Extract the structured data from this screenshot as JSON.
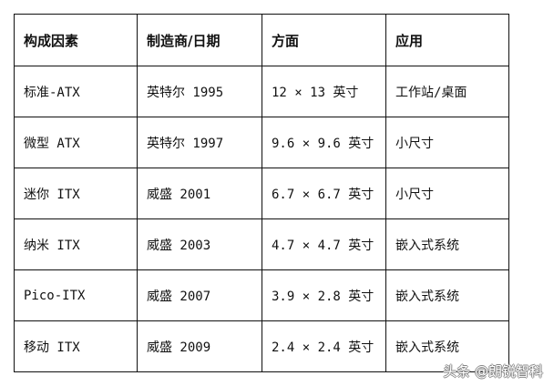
{
  "table": {
    "headers": [
      "构成因素",
      "制造商/日期",
      "方面",
      "应用"
    ],
    "rows": [
      [
        "标准-ATX",
        "英特尔 1995",
        "12 × 13 英寸",
        "工作站/桌面"
      ],
      [
        "微型 ATX",
        "英特尔 1997",
        "9.6 × 9.6 英寸",
        "小尺寸"
      ],
      [
        "迷你 ITX",
        "威盛 2001",
        "6.7 × 6.7 英寸",
        "小尺寸"
      ],
      [
        "纳米 ITX",
        "威盛 2003",
        "4.7 × 4.7 英寸",
        "嵌入式系统"
      ],
      [
        "Pico-ITX",
        "威盛 2007",
        "3.9 × 2.8 英寸",
        "嵌入式系统"
      ],
      [
        "移动 ITX",
        "威盛 2009",
        "2.4 × 2.4 英寸",
        "嵌入式系统"
      ]
    ]
  },
  "watermark": "头条 @朗锐智科"
}
